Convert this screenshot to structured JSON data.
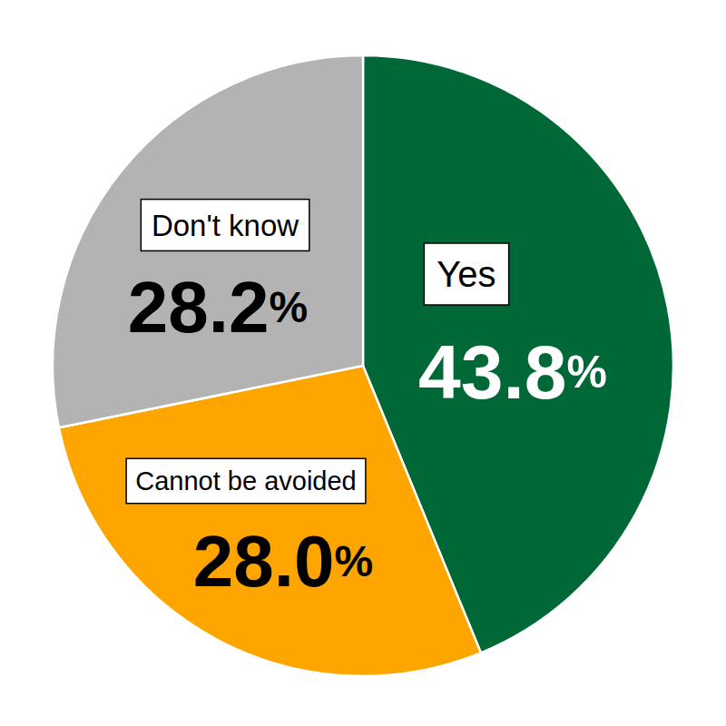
{
  "chart_data": {
    "type": "pie",
    "categories": [
      "Yes",
      "Cannot be avoided",
      "Don't know"
    ],
    "values": [
      43.8,
      28.0,
      28.2
    ],
    "value_labels": [
      "43.8%",
      "28.0%",
      "28.2%"
    ],
    "colors": [
      "#006837",
      "#ffa500",
      "#b3b3b3"
    ],
    "data_labels": true
  }
}
